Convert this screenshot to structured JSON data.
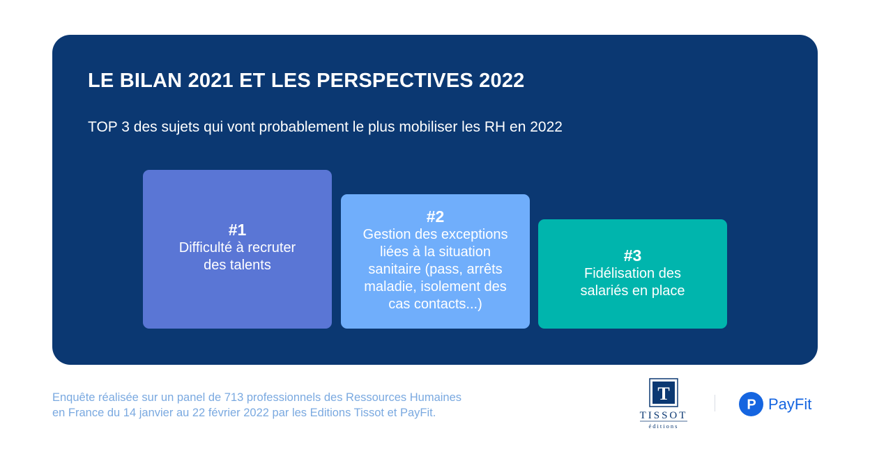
{
  "panel": {
    "title": "LE BILAN 2021 ET LES PERSPECTIVES 2022",
    "subtitle": "TOP 3 des sujets qui vont probablement le plus mobiliser les RH en 2022"
  },
  "podium": [
    {
      "rank": "#1",
      "lines": [
        "Difficulté à recruter",
        "des talents"
      ],
      "color": "#5a76d5"
    },
    {
      "rank": "#2",
      "lines": [
        "Gestion des exceptions",
        "liées à la situation",
        "sanitaire (pass, arrêts",
        "maladie, isolement des",
        "cas contacts...)"
      ],
      "color": "#70aefb"
    },
    {
      "rank": "#3",
      "lines": [
        "Fidélisation des",
        "salariés en place"
      ],
      "color": "#00b5ad"
    }
  ],
  "footer": {
    "note_line1": "Enquête réalisée sur un panel de 713 professionnels des Ressources Humaines",
    "note_line2": "en France du 14 janvier au 22 février 2022 par les Editions Tissot et PayFit.",
    "tissot_logo": {
      "letter": "T",
      "name": "TISSOT",
      "sub": "éditions"
    },
    "payfit_logo": {
      "letter": "P",
      "name": "PayFit",
      "color": "#1565e0"
    }
  },
  "colors": {
    "panel": "#0b3872",
    "footnote": "#7aa9e0"
  }
}
